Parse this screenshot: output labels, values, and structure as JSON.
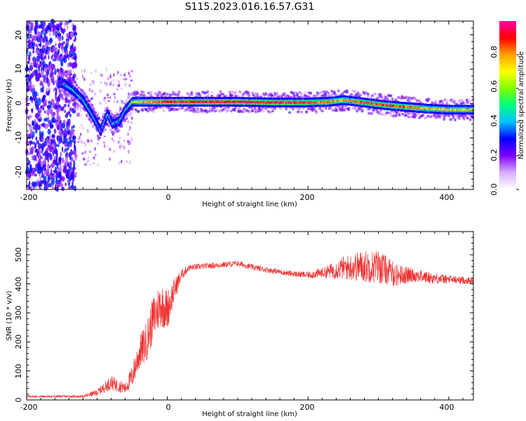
{
  "chart_data": [
    {
      "type": "heatmap",
      "title": "S115.2023.016.16.57.G31",
      "xlabel": "Height of straight line (km)",
      "ylabel": "Frequency (Hz)",
      "xlim": [
        -200,
        435
      ],
      "ylim": [
        -25,
        24
      ],
      "xticks": [
        "-200",
        "0",
        "200",
        "400"
      ],
      "yticks": [
        "-20",
        "-10",
        "0",
        "10",
        "20"
      ],
      "colorbar": {
        "label": "Normalized spectral amplitude",
        "range": [
          0,
          1
        ],
        "ticks": [
          "0.0",
          "0.2",
          "0.4",
          "0.6",
          "0.8"
        ],
        "colormap": [
          "#ffffff",
          "#d8b0ff",
          "#8000ff",
          "#0000ff",
          "#00c0ff",
          "#00ff80",
          "#80ff00",
          "#ffff00",
          "#ffa000",
          "#ff0000",
          "#ff00a0"
        ]
      },
      "ridge": [
        {
          "x": -150,
          "y": 6,
          "v": 0.35
        },
        {
          "x": -135,
          "y": 4,
          "v": 0.5
        },
        {
          "x": -120,
          "y": 1,
          "v": 0.45
        },
        {
          "x": -105,
          "y": -4,
          "v": 0.45
        },
        {
          "x": -95,
          "y": -8,
          "v": 0.35
        },
        {
          "x": -85,
          "y": -3,
          "v": 0.45
        },
        {
          "x": -78,
          "y": -6,
          "v": 0.4
        },
        {
          "x": -68,
          "y": -5,
          "v": 0.4
        },
        {
          "x": -60,
          "y": -2,
          "v": 0.45
        },
        {
          "x": -50,
          "y": 0.5,
          "v": 0.6
        },
        {
          "x": -30,
          "y": 0.5,
          "v": 0.75
        },
        {
          "x": 0,
          "y": 0.5,
          "v": 0.9
        },
        {
          "x": 50,
          "y": 0.5,
          "v": 0.9
        },
        {
          "x": 100,
          "y": 0.5,
          "v": 0.9
        },
        {
          "x": 150,
          "y": 0.3,
          "v": 0.9
        },
        {
          "x": 200,
          "y": 0.3,
          "v": 0.85
        },
        {
          "x": 230,
          "y": 0.5,
          "v": 0.8
        },
        {
          "x": 250,
          "y": 1,
          "v": 0.75
        },
        {
          "x": 280,
          "y": 0.3,
          "v": 0.85
        },
        {
          "x": 310,
          "y": -0.5,
          "v": 0.85
        },
        {
          "x": 340,
          "y": -1,
          "v": 0.85
        },
        {
          "x": 370,
          "y": -1.5,
          "v": 0.75
        },
        {
          "x": 400,
          "y": -1.8,
          "v": 0.7
        },
        {
          "x": 435,
          "y": -1.8,
          "v": 0.7
        }
      ]
    },
    {
      "type": "line",
      "xlabel": "Height of straight line (km)",
      "ylabel": "SNR (10 * v/v)",
      "xlim": [
        -200,
        435
      ],
      "ylim": [
        0,
        580
      ],
      "xticks": [
        "-200",
        "0",
        "200",
        "400"
      ],
      "yticks": [
        "0",
        "100",
        "200",
        "300",
        "400",
        "500"
      ],
      "color": "#ee3333",
      "x": [
        -200,
        -160,
        -120,
        -100,
        -80,
        -60,
        -50,
        -40,
        -30,
        -20,
        -10,
        0,
        10,
        20,
        30,
        50,
        75,
        100,
        125,
        150,
        175,
        200,
        225,
        250,
        275,
        300,
        325,
        350,
        375,
        400,
        435
      ],
      "y": [
        12,
        12,
        12,
        25,
        60,
        40,
        80,
        160,
        200,
        280,
        330,
        310,
        380,
        430,
        455,
        460,
        465,
        470,
        455,
        445,
        435,
        430,
        440,
        455,
        460,
        460,
        430,
        430,
        420,
        415,
        410
      ],
      "noise": [
        4,
        4,
        4,
        12,
        25,
        20,
        40,
        60,
        70,
        80,
        80,
        70,
        40,
        20,
        12,
        10,
        10,
        10,
        10,
        10,
        10,
        12,
        20,
        40,
        55,
        60,
        40,
        25,
        20,
        15,
        12
      ]
    }
  ]
}
